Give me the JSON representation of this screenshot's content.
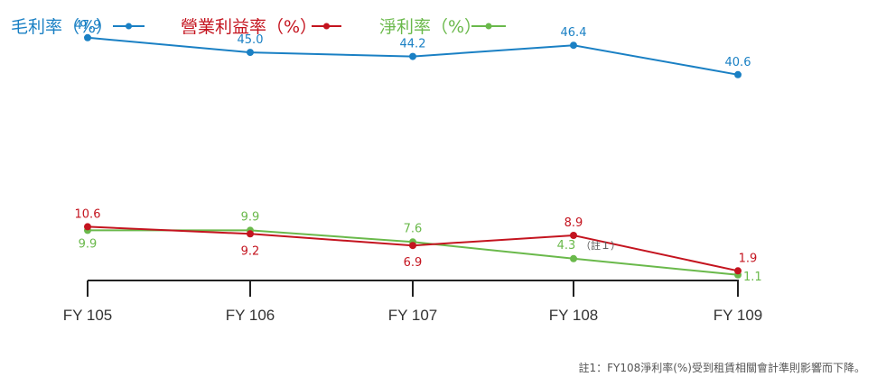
{
  "chart_data": {
    "type": "line",
    "title": "",
    "xlabel": "",
    "ylabel": "",
    "categories": [
      "FY 105",
      "FY 106",
      "FY 107",
      "FY 108",
      "FY 109"
    ],
    "ylim": [
      0,
      50
    ],
    "grid": false,
    "legend_position": "top-left",
    "series": [
      {
        "name": "毛利率（%）",
        "color": "#1a80c4",
        "values": [
          47.9,
          45.0,
          44.2,
          46.4,
          40.6
        ],
        "labels": [
          "47.9",
          "45.0",
          "44.2",
          "46.4",
          "40.6"
        ]
      },
      {
        "name": "營業利益率（%）",
        "color": "#c4141f",
        "values": [
          10.6,
          9.2,
          6.9,
          8.9,
          1.9
        ],
        "labels": [
          "10.6",
          "9.2",
          "6.9",
          "8.9",
          "1.9"
        ]
      },
      {
        "name": "淨利率（%）",
        "color": "#6ab94b",
        "values": [
          9.9,
          9.9,
          7.6,
          4.3,
          1.1
        ],
        "labels": [
          "9.9",
          "9.9",
          "7.6",
          "4.3",
          "1.1"
        ]
      }
    ],
    "annotations": [
      {
        "series": 2,
        "index": 3,
        "text": "（註１）"
      }
    ],
    "footnote": "註1：FY108淨利率(%)受到租賃相關會計準則影響而下降。"
  }
}
